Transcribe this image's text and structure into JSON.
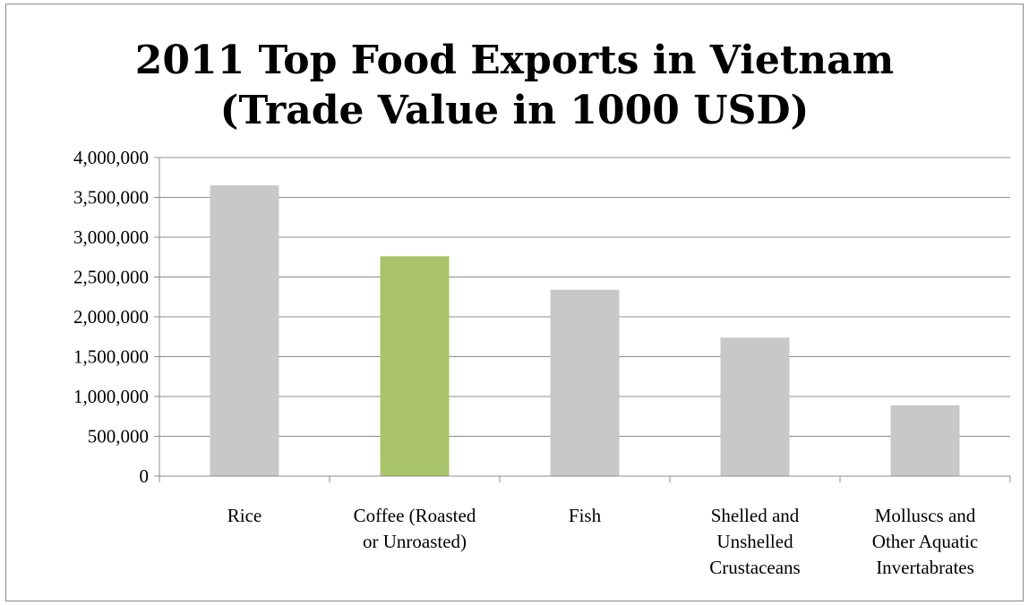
{
  "chart_data": {
    "type": "bar",
    "title_lines": [
      "2011 Top Food Exports in Vietnam",
      "(Trade Value  in 1000 USD)"
    ],
    "categories": [
      [
        "Rice"
      ],
      [
        "Coffee (Roasted",
        "or Unroasted)"
      ],
      [
        "Fish"
      ],
      [
        "Shelled and",
        "Unshelled",
        "Crustaceans"
      ],
      [
        "Molluscs and",
        "Other Aquatic",
        "Invertabrates"
      ]
    ],
    "values": [
      3650000,
      2760000,
      2340000,
      1740000,
      890000
    ],
    "colors": [
      "#c8c8c8",
      "#a8c36a",
      "#c8c8c8",
      "#c8c8c8",
      "#c8c8c8"
    ],
    "ylim": [
      0,
      4000000
    ],
    "yticks": [
      0,
      500000,
      1000000,
      1500000,
      2000000,
      2500000,
      3000000,
      3500000,
      4000000
    ],
    "ytick_labels": [
      "0",
      "500,000",
      "1,000,000",
      "1,500,000",
      "2,000,000",
      "2,500,000",
      "3,000,000",
      "3,500,000",
      "4,000,000"
    ],
    "grid": true,
    "gridline_color": "#8c8c8c",
    "legend": "none"
  }
}
